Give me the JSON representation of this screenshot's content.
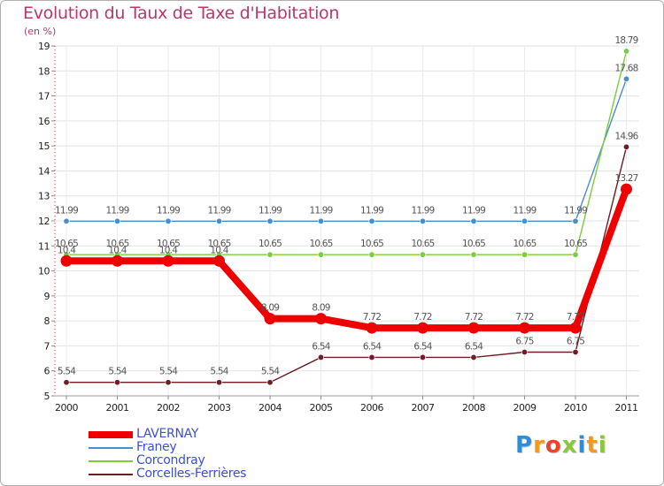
{
  "chart_data": {
    "type": "line",
    "title": "Evolution du Taux de Taxe d'Habitation",
    "subtitle": "(en %)",
    "xlabel": "",
    "ylabel": "",
    "x": [
      "2000",
      "2001",
      "2002",
      "2003",
      "2004",
      "2005",
      "2006",
      "2007",
      "2008",
      "2009",
      "2010",
      "2011"
    ],
    "ylim": [
      5,
      19
    ],
    "yticks": [
      5,
      6,
      7,
      8,
      9,
      10,
      11,
      12,
      13,
      14,
      15,
      16,
      17,
      18,
      19
    ],
    "legend_position": "bottom-left",
    "series": [
      {
        "name": "LAVERNAY",
        "color": "#ee0000",
        "values": [
          10.4,
          10.4,
          10.4,
          10.4,
          8.09,
          8.09,
          7.72,
          7.72,
          7.72,
          7.72,
          7.72,
          13.27
        ],
        "labels": [
          "10.4",
          "10.4",
          "10.4",
          "10.4",
          "8.09",
          "8.09",
          "7.72",
          "7.72",
          "7.72",
          "7.72",
          "7.72",
          "13.27"
        ]
      },
      {
        "name": "Franey",
        "color": "#4a8ec9",
        "values": [
          11.99,
          11.99,
          11.99,
          11.99,
          11.99,
          11.99,
          11.99,
          11.99,
          11.99,
          11.99,
          11.99,
          17.68
        ],
        "labels": [
          "11.99",
          "11.99",
          "11.99",
          "11.99",
          "11.99",
          "11.99",
          "11.99",
          "11.99",
          "11.99",
          "11.99",
          "11.99",
          "17.68"
        ]
      },
      {
        "name": "Corcondray",
        "color": "#7ccd3c",
        "values": [
          10.65,
          10.65,
          10.65,
          10.65,
          10.65,
          10.65,
          10.65,
          10.65,
          10.65,
          10.65,
          10.65,
          18.79
        ],
        "labels": [
          "10.65",
          "10.65",
          "10.65",
          "10.65",
          "10.65",
          "10.65",
          "10.65",
          "10.65",
          "10.65",
          "10.65",
          "10.65",
          "18.79"
        ]
      },
      {
        "name": "Corcelles-Ferrières",
        "color": "#6b1e24",
        "values": [
          5.54,
          5.54,
          5.54,
          5.54,
          5.54,
          6.54,
          6.54,
          6.54,
          6.54,
          6.75,
          6.75,
          14.96
        ],
        "labels": [
          "5.54",
          "5.54",
          "5.54",
          "5.54",
          "5.54",
          "6.54",
          "6.54",
          "6.54",
          "6.54",
          "6.75",
          "6.75",
          "14.96"
        ]
      }
    ]
  },
  "brand": {
    "letters": [
      "P",
      "r",
      "o",
      "x",
      "i",
      "t",
      "i"
    ],
    "colors": [
      "#2c8fd6",
      "#f39a1e",
      "#e8452c",
      "#8cc63e",
      "#2c8fd6",
      "#f39a1e",
      "#8cc63e"
    ]
  }
}
